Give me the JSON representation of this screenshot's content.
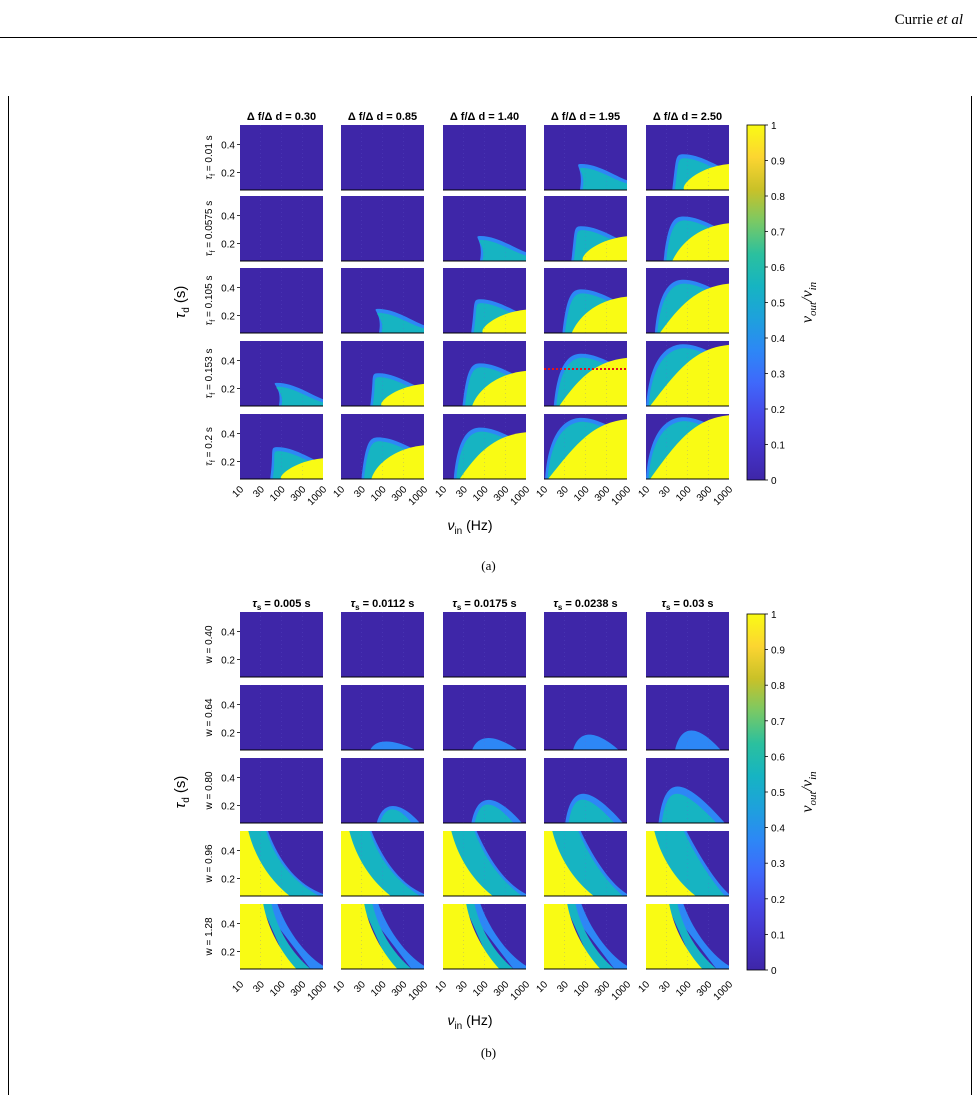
{
  "running_head": {
    "author": "Currie",
    "etal": "et al"
  },
  "figures": [
    {
      "id": "a",
      "caption": "(a)",
      "column_titles": [
        "Δ f/Δ d = 0.30",
        "Δ f/Δ d = 0.85",
        "Δ f/Δ d = 1.40",
        "Δ f/Δ d = 1.95",
        "Δ f/Δ d = 2.50"
      ],
      "row_labels": [
        "τ_f = 0.01 s",
        "τ_f = 0.0575 s",
        "τ_f = 0.105 s",
        "τ_f = 0.153 s",
        "τ_f = 0.2 s"
      ],
      "row_label_main": [
        "τ",
        "τ",
        "τ",
        "τ",
        "τ"
      ],
      "row_label_sub": [
        "f",
        "f",
        "f",
        "f",
        "f"
      ],
      "row_label_rest": [
        " = 0.01 s",
        " = 0.0575 s",
        " = 0.105 s",
        " = 0.153 s",
        " = 0.2 s"
      ],
      "y_axis_label_main": "τ",
      "y_axis_label_sub": "d",
      "y_axis_label_unit": " (s)",
      "x_axis_label_main": "ν",
      "x_axis_label_sub": "in",
      "x_axis_label_unit": " (Hz)",
      "highlight_panel": {
        "row": 3,
        "col": 3,
        "color": "#e8101a"
      }
    },
    {
      "id": "b",
      "caption": "(b)",
      "column_titles": [
        "τ_s = 0.005 s",
        "τ_s = 0.0112 s",
        "τ_s = 0.0175 s",
        "τ_s = 0.0238 s",
        "τ_s = 0.03 s"
      ],
      "col_title_main": [
        "τ",
        "τ",
        "τ",
        "τ",
        "τ"
      ],
      "col_title_sub": [
        "s",
        "s",
        "s",
        "s",
        "s"
      ],
      "col_title_rest": [
        " = 0.005 s",
        " = 0.0112 s",
        " = 0.0175 s",
        " = 0.0238 s",
        " = 0.03 s"
      ],
      "row_labels": [
        "w = 0.40",
        "w = 0.64",
        "w = 0.80",
        "w = 0.96",
        "w = 1.28"
      ],
      "y_axis_label_main": "τ",
      "y_axis_label_sub": "d",
      "y_axis_label_unit": " (s)",
      "x_axis_label_main": "ν",
      "x_axis_label_sub": "in",
      "x_axis_label_unit": " (Hz)"
    }
  ],
  "axes": {
    "y_ticks": [
      "0.4",
      "0.2"
    ],
    "x_ticks": [
      "10",
      "30",
      "100",
      "300",
      "1000"
    ]
  },
  "colorbar": {
    "ticks": [
      "1",
      "0.9",
      "0.8",
      "0.7",
      "0.6",
      "0.5",
      "0.4",
      "0.3",
      "0.2",
      "0.1",
      "0"
    ],
    "label": "ν_out/ν_in",
    "colors": [
      "#3e26a8",
      "#4433c9",
      "#4747e6",
      "#3f68fb",
      "#2d87f6",
      "#1ea1dc",
      "#16b4c2",
      "#2bc09e",
      "#79c965",
      "#c9c128",
      "#fcd531",
      "#f9fb14"
    ]
  },
  "chart_data": [
    {
      "type": "heatmap",
      "title": "(a)",
      "column_facet": [
        "Δ f/Δ d = 0.30",
        "Δ f/Δ d = 0.85",
        "Δ f/Δ d = 1.40",
        "Δ f/Δ d = 1.95",
        "Δ f/Δ d = 2.50"
      ],
      "row_facet": [
        "τ_f = 0.01 s",
        "τ_f = 0.0575 s",
        "τ_f = 0.105 s",
        "τ_f = 0.153 s",
        "τ_f = 0.2 s"
      ],
      "xlabel": "ν_in (Hz)",
      "ylabel": "τ_d (s)",
      "x_scale": "log",
      "x_ticks": [
        10,
        30,
        100,
        300,
        1000
      ],
      "y_ticks": [
        0.2,
        0.4
      ],
      "colorbar_label": "ν_out/ν_in",
      "clim": [
        0,
        1
      ]
    },
    {
      "type": "heatmap",
      "title": "(b)",
      "column_facet": [
        "τ_s = 0.005 s",
        "τ_s = 0.0112 s",
        "τ_s = 0.0175 s",
        "τ_s = 0.0238 s",
        "τ_s = 0.03 s"
      ],
      "row_facet": [
        "w = 0.40",
        "w = 0.64",
        "w = 0.80",
        "w = 0.96",
        "w = 1.28"
      ],
      "xlabel": "ν_in (Hz)",
      "ylabel": "τ_d (s)",
      "x_scale": "log",
      "x_ticks": [
        10,
        30,
        100,
        300,
        1000
      ],
      "y_ticks": [
        0.2,
        0.4
      ],
      "colorbar_label": "ν_out/ν_in",
      "clim": [
        0,
        1
      ]
    }
  ]
}
